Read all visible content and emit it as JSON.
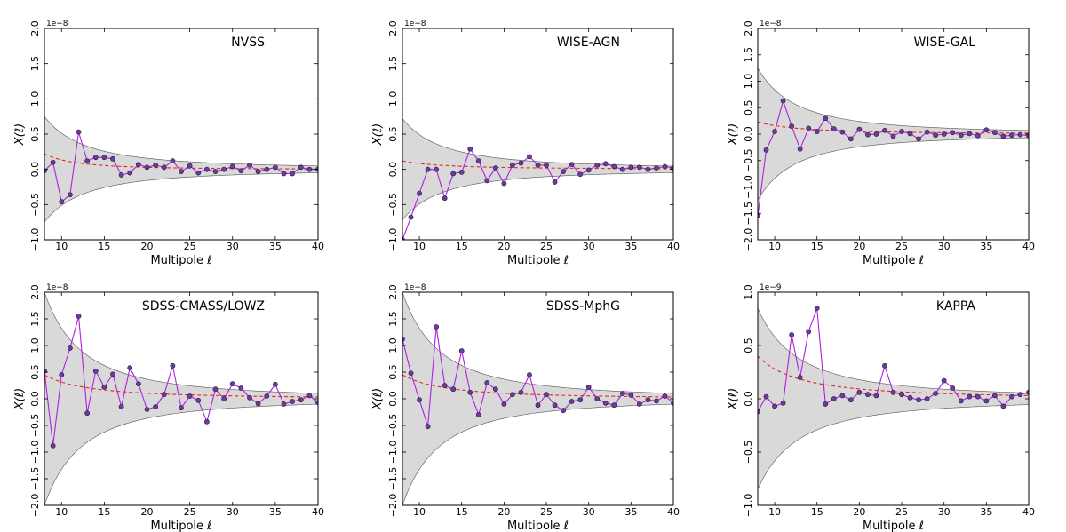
{
  "chart_data": [
    {
      "type": "line",
      "title": "NVSS",
      "xlabel": "Multipole ℓ",
      "ylabel": "X(ℓ)",
      "scale_label": "1e−8",
      "xlim": [
        8,
        40
      ],
      "ylim": [
        -1.0,
        2.0
      ],
      "xticks": [
        10,
        15,
        20,
        25,
        30,
        35,
        40
      ],
      "xtick_labels": [
        "10",
        "15",
        "20",
        "25",
        "30",
        "35",
        "40"
      ],
      "yticks": [
        -1.0,
        -0.5,
        0.0,
        0.5,
        1.0,
        1.5,
        2.0
      ],
      "ytick_labels": [
        "−1.0",
        "−0.5",
        "0.0",
        "0.5",
        "1.0",
        "1.5",
        "2.0"
      ],
      "data_x": [
        8,
        9,
        10,
        11,
        12,
        13,
        14,
        15,
        16,
        17,
        18,
        19,
        20,
        21,
        22,
        23,
        24,
        25,
        26,
        27,
        28,
        29,
        30,
        31,
        32,
        33,
        34,
        35,
        36,
        37,
        38,
        39,
        40
      ],
      "data_y": [
        -0.02,
        0.1,
        -0.46,
        -0.36,
        0.53,
        0.12,
        0.17,
        0.17,
        0.15,
        -0.08,
        -0.05,
        0.07,
        0.03,
        0.06,
        0.03,
        0.12,
        -0.03,
        0.05,
        -0.05,
        0.0,
        -0.03,
        0.0,
        0.04,
        -0.02,
        0.06,
        -0.03,
        0.0,
        0.03,
        -0.06,
        -0.06,
        0.03,
        0.0,
        0.0
      ],
      "theory": {
        "amplitude": 0.22,
        "power": 2.2
      },
      "band": {
        "amplitude": 0.75,
        "power": 1.7
      }
    },
    {
      "type": "line",
      "title": "WISE-AGN",
      "xlabel": "Multipole ℓ",
      "ylabel": "X(ℓ)",
      "scale_label": "1e−8",
      "xlim": [
        8,
        40
      ],
      "ylim": [
        -1.0,
        2.0
      ],
      "xticks": [
        10,
        15,
        20,
        25,
        30,
        35,
        40
      ],
      "xtick_labels": [
        "10",
        "15",
        "20",
        "25",
        "30",
        "35",
        "40"
      ],
      "yticks": [
        -1.0,
        -0.5,
        0.0,
        0.5,
        1.0,
        1.5,
        2.0
      ],
      "ytick_labels": [
        "−1.0",
        "−0.5",
        "0.0",
        "0.5",
        "1.0",
        "1.5",
        "2.0"
      ],
      "data_x": [
        8,
        9,
        10,
        11,
        12,
        13,
        14,
        15,
        16,
        17,
        18,
        19,
        20,
        21,
        22,
        23,
        24,
        25,
        26,
        27,
        28,
        29,
        30,
        31,
        32,
        33,
        34,
        35,
        36,
        37,
        38,
        39,
        40
      ],
      "data_y": [
        -1.0,
        -0.68,
        -0.34,
        0.0,
        0.0,
        -0.41,
        -0.06,
        -0.04,
        0.29,
        0.12,
        -0.16,
        0.02,
        -0.2,
        0.06,
        0.09,
        0.18,
        0.06,
        0.06,
        -0.18,
        -0.03,
        0.07,
        -0.07,
        -0.01,
        0.06,
        0.08,
        0.04,
        0.0,
        0.03,
        0.03,
        0.0,
        0.02,
        0.04,
        0.02
      ],
      "theory": {
        "amplitude": 0.12,
        "power": 1.6
      },
      "band": {
        "amplitude": 0.72,
        "power": 1.7
      }
    },
    {
      "type": "line",
      "title": "WISE-GAL",
      "xlabel": "Multipole ℓ",
      "ylabel": "X(ℓ)",
      "scale_label": "1e−8",
      "xlim": [
        8,
        40
      ],
      "ylim": [
        -2.0,
        2.0
      ],
      "xticks": [
        10,
        15,
        20,
        25,
        30,
        35,
        40
      ],
      "xtick_labels": [
        "10",
        "15",
        "20",
        "25",
        "30",
        "35",
        "40"
      ],
      "yticks": [
        -2.0,
        -1.5,
        -1.0,
        -0.5,
        0.0,
        0.5,
        1.0,
        1.5,
        2.0
      ],
      "ytick_labels": [
        "−2.0",
        "−1.5",
        "−1.0",
        "−0.5",
        "0.0",
        "0.5",
        "1.0",
        "1.5",
        "2.0"
      ],
      "data_x": [
        8,
        9,
        10,
        11,
        12,
        13,
        14,
        15,
        16,
        17,
        18,
        19,
        20,
        21,
        22,
        23,
        24,
        25,
        26,
        27,
        28,
        29,
        30,
        31,
        32,
        33,
        34,
        35,
        36,
        37,
        38,
        39,
        40
      ],
      "data_y": [
        -1.55,
        -0.3,
        0.05,
        0.63,
        0.15,
        -0.28,
        0.11,
        0.05,
        0.3,
        0.1,
        0.04,
        -0.09,
        0.09,
        -0.01,
        0.0,
        0.07,
        -0.04,
        0.05,
        0.01,
        -0.09,
        0.04,
        -0.02,
        0.0,
        0.03,
        -0.02,
        0.01,
        -0.03,
        0.08,
        0.03,
        -0.04,
        -0.02,
        -0.01,
        -0.03
      ],
      "theory": {
        "amplitude": 0.23,
        "power": 1.6
      },
      "band": {
        "amplitude": 1.25,
        "power": 1.8
      }
    },
    {
      "type": "line",
      "title": "SDSS-CMASS/LOWZ",
      "xlabel": "Multipole ℓ",
      "ylabel": "X(ℓ)",
      "scale_label": "1e−8",
      "xlim": [
        8,
        40
      ],
      "ylim": [
        -2.0,
        2.0
      ],
      "xticks": [
        10,
        15,
        20,
        25,
        30,
        35,
        40
      ],
      "xtick_labels": [
        "10",
        "15",
        "20",
        "25",
        "30",
        "35",
        "40"
      ],
      "yticks": [
        -2.0,
        -1.5,
        -1.0,
        -0.5,
        0.0,
        0.5,
        1.0,
        1.5,
        2.0
      ],
      "ytick_labels": [
        "−2.0",
        "−1.5",
        "−1.0",
        "−0.5",
        "0.0",
        "0.5",
        "1.0",
        "1.5",
        "2.0"
      ],
      "data_x": [
        8,
        9,
        10,
        11,
        12,
        13,
        14,
        15,
        16,
        17,
        18,
        19,
        20,
        21,
        22,
        23,
        24,
        25,
        26,
        27,
        28,
        29,
        30,
        31,
        32,
        33,
        34,
        35,
        36,
        37,
        38,
        39,
        40
      ],
      "data_y": [
        0.52,
        -0.88,
        0.45,
        0.95,
        1.55,
        -0.27,
        0.52,
        0.22,
        0.46,
        -0.15,
        0.58,
        0.28,
        -0.2,
        -0.15,
        0.08,
        0.62,
        -0.17,
        0.05,
        -0.03,
        -0.43,
        0.18,
        0.0,
        0.28,
        0.2,
        0.02,
        -0.09,
        0.05,
        0.27,
        -0.1,
        -0.05,
        -0.02,
        0.06,
        -0.07
      ],
      "theory": {
        "amplitude": 0.45,
        "power": 1.6
      },
      "band": {
        "amplitude": 2.0,
        "power": 1.85
      }
    },
    {
      "type": "line",
      "title": "SDSS-MphG",
      "xlabel": "Multipole ℓ",
      "ylabel": "X(ℓ)",
      "scale_label": "1e−8",
      "xlim": [
        8,
        40
      ],
      "ylim": [
        -2.0,
        2.0
      ],
      "xticks": [
        10,
        15,
        20,
        25,
        30,
        35,
        40
      ],
      "xtick_labels": [
        "10",
        "15",
        "20",
        "25",
        "30",
        "35",
        "40"
      ],
      "yticks": [
        -2.0,
        -1.5,
        -1.0,
        -0.5,
        0.0,
        0.5,
        1.0,
        1.5,
        2.0
      ],
      "ytick_labels": [
        "−2.0",
        "−1.5",
        "−1.0",
        "−0.5",
        "0.0",
        "0.5",
        "1.0",
        "1.5",
        "2.0"
      ],
      "data_x": [
        8,
        9,
        10,
        11,
        12,
        13,
        14,
        15,
        16,
        17,
        18,
        19,
        20,
        21,
        22,
        23,
        24,
        25,
        26,
        27,
        28,
        29,
        30,
        31,
        32,
        33,
        34,
        35,
        36,
        37,
        38,
        39,
        40
      ],
      "data_y": [
        1.12,
        0.48,
        -0.02,
        -0.52,
        1.35,
        0.25,
        0.18,
        0.9,
        0.12,
        -0.3,
        0.3,
        0.18,
        -0.1,
        0.08,
        0.12,
        0.45,
        -0.12,
        0.08,
        -0.12,
        -0.22,
        -0.05,
        -0.02,
        0.22,
        0.0,
        -0.08,
        -0.12,
        0.1,
        0.07,
        -0.1,
        -0.02,
        -0.04,
        0.05,
        -0.08
      ],
      "theory": {
        "amplitude": 0.45,
        "power": 1.6
      },
      "band": {
        "amplitude": 2.0,
        "power": 1.85
      }
    },
    {
      "type": "line",
      "title": "KAPPA",
      "xlabel": "Multipole ℓ",
      "ylabel": "X(ℓ)",
      "scale_label": "1e−9",
      "xlim": [
        8,
        40
      ],
      "ylim": [
        -1.0,
        1.0
      ],
      "xticks": [
        10,
        15,
        20,
        25,
        30,
        35,
        40
      ],
      "xtick_labels": [
        "10",
        "15",
        "20",
        "25",
        "30",
        "35",
        "40"
      ],
      "yticks": [
        -1.0,
        -0.5,
        0.0,
        0.5,
        1.0
      ],
      "ytick_labels": [
        "−1.0",
        "−0.5",
        "0.0",
        "0.5",
        "1.0"
      ],
      "data_x": [
        8,
        9,
        10,
        11,
        12,
        13,
        14,
        15,
        16,
        17,
        18,
        19,
        20,
        21,
        22,
        23,
        24,
        25,
        26,
        27,
        28,
        29,
        30,
        31,
        32,
        33,
        34,
        35,
        36,
        37,
        38,
        39,
        40
      ],
      "data_y": [
        -0.12,
        0.02,
        -0.07,
        -0.04,
        0.6,
        0.2,
        0.63,
        0.85,
        -0.05,
        0.0,
        0.03,
        -0.01,
        0.06,
        0.04,
        0.03,
        0.31,
        0.06,
        0.04,
        0.01,
        -0.01,
        0.0,
        0.05,
        0.17,
        0.1,
        -0.02,
        0.02,
        0.02,
        -0.02,
        0.03,
        -0.07,
        0.02,
        0.04,
        0.06
      ],
      "theory": {
        "amplitude": 0.4,
        "power": 1.6
      },
      "band": {
        "amplitude": 0.85,
        "power": 1.7
      }
    }
  ]
}
